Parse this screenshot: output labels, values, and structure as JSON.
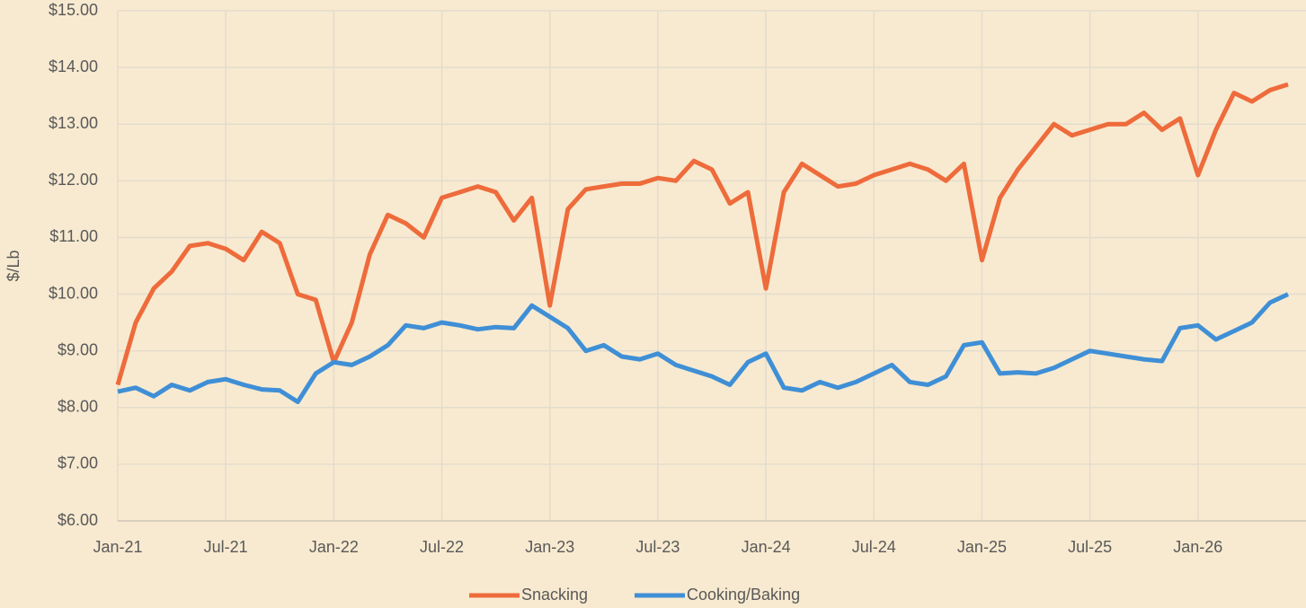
{
  "chart_data": {
    "type": "line",
    "y_label": "$/Lb",
    "x": [
      "2021-01",
      "2021-02",
      "2021-03",
      "2021-04",
      "2021-05",
      "2021-06",
      "2021-07",
      "2021-08",
      "2021-09",
      "2021-10",
      "2021-11",
      "2021-12",
      "2022-01",
      "2022-02",
      "2022-03",
      "2022-04",
      "2022-05",
      "2022-06",
      "2022-07",
      "2022-08",
      "2022-09",
      "2022-10",
      "2022-11",
      "2022-12",
      "2023-01",
      "2023-02",
      "2023-03",
      "2023-04",
      "2023-05",
      "2023-06",
      "2023-07",
      "2023-08",
      "2023-09",
      "2023-10",
      "2023-11",
      "2023-12",
      "2024-01",
      "2024-02",
      "2024-03",
      "2024-04",
      "2024-05",
      "2024-06",
      "2024-07",
      "2024-08",
      "2024-09",
      "2024-10",
      "2024-11",
      "2024-12",
      "2025-01",
      "2025-02",
      "2025-03",
      "2025-04",
      "2025-05",
      "2025-06",
      "2025-07",
      "2025-08",
      "2025-09",
      "2025-10",
      "2025-11",
      "2025-12",
      "2026-01",
      "2026-02",
      "2026-03",
      "2026-04",
      "2026-05",
      "2026-06"
    ],
    "series": [
      {
        "name": "Snacking",
        "color": "#ee6b3b",
        "values": [
          8.4,
          9.5,
          10.1,
          10.4,
          10.85,
          10.9,
          10.8,
          10.6,
          11.1,
          10.9,
          10.0,
          9.9,
          8.8,
          9.5,
          10.7,
          11.4,
          11.25,
          11.0,
          11.7,
          11.8,
          11.9,
          11.8,
          11.3,
          11.7,
          9.8,
          11.5,
          11.85,
          11.9,
          11.95,
          11.95,
          12.05,
          12.0,
          12.35,
          12.2,
          11.6,
          11.8,
          10.1,
          11.8,
          12.3,
          12.1,
          11.9,
          11.95,
          12.1,
          12.2,
          12.3,
          12.2,
          12.0,
          12.3,
          10.6,
          11.7,
          12.2,
          12.6,
          13.0,
          12.8,
          12.9,
          13.0,
          13.0,
          13.2,
          12.9,
          13.1,
          12.1,
          12.9,
          13.55,
          13.4,
          13.6,
          13.7
        ]
      },
      {
        "name": "Cooking/Baking",
        "color": "#3f8fd6",
        "values": [
          8.28,
          8.35,
          8.2,
          8.4,
          8.3,
          8.45,
          8.5,
          8.4,
          8.32,
          8.3,
          8.1,
          8.6,
          8.8,
          8.75,
          8.9,
          9.1,
          9.45,
          9.4,
          9.5,
          9.45,
          9.38,
          9.42,
          9.4,
          9.8,
          9.6,
          9.4,
          9.0,
          9.1,
          8.9,
          8.85,
          8.95,
          8.75,
          8.65,
          8.55,
          8.4,
          8.8,
          8.95,
          8.35,
          8.3,
          8.45,
          8.35,
          8.45,
          8.6,
          8.75,
          8.45,
          8.4,
          8.55,
          9.1,
          9.15,
          8.6,
          8.62,
          8.6,
          8.7,
          8.85,
          9.0,
          8.95,
          8.9,
          8.85,
          8.82,
          9.4,
          9.45,
          9.2,
          9.35,
          9.5,
          9.85,
          10.0
        ]
      }
    ],
    "xlim": [
      "2021-01",
      "2026-07"
    ],
    "xticks": [
      {
        "value": "2021-01",
        "label": "Jan-21"
      },
      {
        "value": "2021-07",
        "label": "Jul-21"
      },
      {
        "value": "2022-01",
        "label": "Jan-22"
      },
      {
        "value": "2022-07",
        "label": "Jul-22"
      },
      {
        "value": "2023-01",
        "label": "Jan-23"
      },
      {
        "value": "2023-07",
        "label": "Jul-23"
      },
      {
        "value": "2024-01",
        "label": "Jan-24"
      },
      {
        "value": "2024-07",
        "label": "Jul-24"
      },
      {
        "value": "2025-01",
        "label": "Jan-25"
      },
      {
        "value": "2025-07",
        "label": "Jul-25"
      },
      {
        "value": "2026-01",
        "label": "Jan-26"
      }
    ],
    "ylim": [
      6,
      15
    ],
    "yticks": [
      {
        "value": 6,
        "label": "$6.00"
      },
      {
        "value": 7,
        "label": "$7.00"
      },
      {
        "value": 8,
        "label": "$8.00"
      },
      {
        "value": 9,
        "label": "$9.00"
      },
      {
        "value": 10,
        "label": "$10.00"
      },
      {
        "value": 11,
        "label": "$11.00"
      },
      {
        "value": 12,
        "label": "$12.00"
      },
      {
        "value": 13,
        "label": "$13.00"
      },
      {
        "value": 14,
        "label": "$14.00"
      },
      {
        "value": 15,
        "label": "$15.00"
      }
    ],
    "grid": true,
    "legend": "bottom"
  }
}
